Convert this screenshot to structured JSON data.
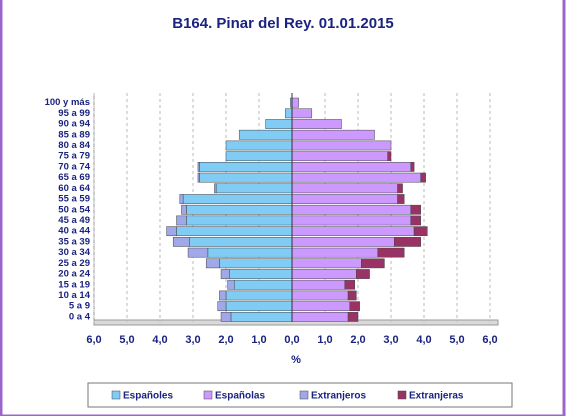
{
  "chart_data": {
    "type": "pyramid",
    "title": "B164. Pinar del Rey. 01.01.2015",
    "x_label": "%",
    "categories": [
      "0 a 4",
      "5 a 9",
      "10 a 14",
      "15 a 19",
      "20 a 24",
      "25 a 29",
      "30 a 34",
      "35 a 39",
      "40 a 44",
      "45 a 49",
      "50 a 54",
      "55 a 59",
      "60 a 64",
      "65 a 69",
      "70 a 74",
      "75 a 79",
      "80 a 84",
      "85 a 89",
      "90 a 94",
      "95 a 99",
      "100 y más"
    ],
    "series": [
      {
        "name": "Españoles",
        "color": "#80ccf4",
        "values": [
          -1.85,
          -2.0,
          -2.0,
          -1.75,
          -1.9,
          -2.2,
          -2.55,
          -3.1,
          -3.5,
          -3.2,
          -3.2,
          -3.3,
          -2.3,
          -2.8,
          -2.8,
          -2.0,
          -2.0,
          -1.6,
          -0.8,
          -0.2,
          -0.05
        ]
      },
      {
        "name": "Españolas",
        "color": "#cc99ff",
        "values": [
          1.7,
          1.75,
          1.7,
          1.6,
          1.95,
          2.1,
          2.6,
          3.1,
          3.7,
          3.6,
          3.6,
          3.2,
          3.2,
          3.9,
          3.6,
          2.9,
          3.0,
          2.5,
          1.5,
          0.6,
          0.2
        ]
      },
      {
        "name": "Extranjeros",
        "color": "#a0a8e8",
        "values": [
          -0.3,
          -0.25,
          -0.2,
          -0.2,
          -0.25,
          -0.4,
          -0.6,
          -0.5,
          -0.3,
          -0.3,
          -0.15,
          -0.1,
          -0.05,
          -0.05,
          -0.05,
          0,
          0,
          0,
          0,
          0,
          0
        ]
      },
      {
        "name": "Extranjeras",
        "color": "#993366",
        "values": [
          0.3,
          0.3,
          0.25,
          0.3,
          0.4,
          0.7,
          0.8,
          0.8,
          0.4,
          0.3,
          0.3,
          0.2,
          0.15,
          0.15,
          0.1,
          0.1,
          0,
          0,
          0,
          0,
          0
        ]
      }
    ],
    "xlim": [
      -6,
      6
    ],
    "xticks": [
      {
        "value": -6,
        "label": "6,0"
      },
      {
        "value": -5,
        "label": "5,0"
      },
      {
        "value": -4,
        "label": "4,0"
      },
      {
        "value": -3,
        "label": "3,0"
      },
      {
        "value": -2,
        "label": "2,0"
      },
      {
        "value": -1,
        "label": "1,0"
      },
      {
        "value": 0,
        "label": "0,0"
      },
      {
        "value": 1,
        "label": "1,0"
      },
      {
        "value": 2,
        "label": "2,0"
      },
      {
        "value": 3,
        "label": "3,0"
      },
      {
        "value": 4,
        "label": "4,0"
      },
      {
        "value": 5,
        "label": "5,0"
      },
      {
        "value": 6,
        "label": "6,0"
      }
    ],
    "grid": true
  }
}
